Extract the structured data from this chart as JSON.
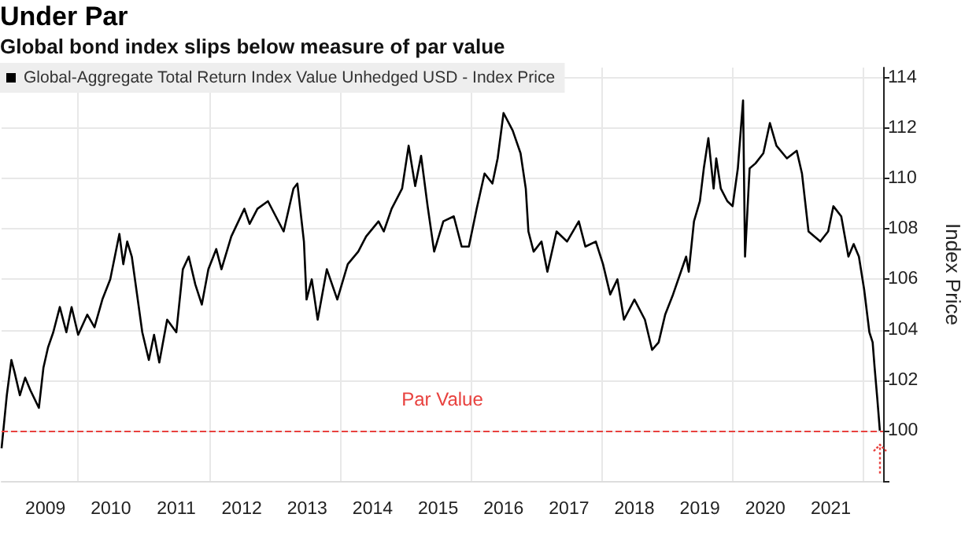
{
  "chart_data": {
    "type": "line",
    "title": "Under Par",
    "subtitle": "Global bond index slips below measure of par value",
    "ylabel": "Index Price",
    "x": [
      2008.83,
      2008.91,
      2008.98,
      2009.03,
      2009.11,
      2009.19,
      2009.27,
      2009.4,
      2009.47,
      2009.54,
      2009.62,
      2009.72,
      2009.82,
      2009.9,
      2010.0,
      2010.14,
      2010.25,
      2010.37,
      2010.49,
      2010.63,
      2010.69,
      2010.75,
      2010.82,
      2010.9,
      2010.98,
      2011.08,
      2011.16,
      2011.24,
      2011.36,
      2011.5,
      2011.6,
      2011.69,
      2011.79,
      2011.89,
      2011.99,
      2012.11,
      2012.19,
      2012.34,
      2012.54,
      2012.62,
      2012.74,
      2012.9,
      2013.02,
      2013.14,
      2013.29,
      2013.35,
      2013.45,
      2013.49,
      2013.57,
      2013.66,
      2013.8,
      2013.96,
      2014.12,
      2014.28,
      2014.4,
      2014.59,
      2014.67,
      2014.79,
      2014.95,
      2015.05,
      2015.15,
      2015.24,
      2015.34,
      2015.44,
      2015.58,
      2015.74,
      2015.86,
      2015.97,
      2016.09,
      2016.21,
      2016.33,
      2016.41,
      2016.5,
      2016.64,
      2016.76,
      2016.84,
      2016.88,
      2016.96,
      2017.08,
      2017.17,
      2017.31,
      2017.47,
      2017.65,
      2017.75,
      2017.91,
      2018.02,
      2018.13,
      2018.24,
      2018.34,
      2018.5,
      2018.66,
      2018.77,
      2018.87,
      2018.97,
      2019.09,
      2019.21,
      2019.29,
      2019.33,
      2019.41,
      2019.5,
      2019.56,
      2019.63,
      2019.71,
      2019.75,
      2019.82,
      2019.92,
      2020.0,
      2020.08,
      2020.16,
      2020.19,
      2020.26,
      2020.35,
      2020.47,
      2020.57,
      2020.67,
      2020.83,
      2020.98,
      2021.06,
      2021.16,
      2021.34,
      2021.46,
      2021.54,
      2021.66,
      2021.77,
      2021.85,
      2021.93,
      2022.01,
      2022.09,
      2022.14,
      2022.17,
      2022.21,
      2022.25
    ],
    "series": [
      {
        "name": "Global-Aggregate Total Return Index Value Unhedged USD - Index Price",
        "color": "#000000",
        "values": [
          99.3,
          101.4,
          102.8,
          102.3,
          101.4,
          102.1,
          101.6,
          100.9,
          102.5,
          103.3,
          103.9,
          104.9,
          103.9,
          104.9,
          103.8,
          104.6,
          104.1,
          105.2,
          106.0,
          107.8,
          106.6,
          107.5,
          106.9,
          105.4,
          103.9,
          102.8,
          103.8,
          102.7,
          104.4,
          103.9,
          106.4,
          106.9,
          105.8,
          105.0,
          106.4,
          107.2,
          106.4,
          107.7,
          108.8,
          108.2,
          108.8,
          109.1,
          108.5,
          107.9,
          109.6,
          109.8,
          107.5,
          105.2,
          106.0,
          104.4,
          106.4,
          105.2,
          106.6,
          107.1,
          107.7,
          108.3,
          107.9,
          108.8,
          109.6,
          111.3,
          109.7,
          110.9,
          108.9,
          107.1,
          108.3,
          108.5,
          107.3,
          107.3,
          108.8,
          110.2,
          109.8,
          110.8,
          112.6,
          111.9,
          111.0,
          109.6,
          107.9,
          107.1,
          107.5,
          106.3,
          107.9,
          107.5,
          108.3,
          107.3,
          107.5,
          106.6,
          105.4,
          106.0,
          104.4,
          105.2,
          104.4,
          103.2,
          103.5,
          104.6,
          105.4,
          106.3,
          106.9,
          106.3,
          108.3,
          109.1,
          110.4,
          111.6,
          109.6,
          110.8,
          109.6,
          109.1,
          108.9,
          110.4,
          113.1,
          106.9,
          110.4,
          110.6,
          111.0,
          112.2,
          111.3,
          110.8,
          111.1,
          110.2,
          107.9,
          107.5,
          107.9,
          108.9,
          108.5,
          106.9,
          107.4,
          106.9,
          105.6,
          103.9,
          103.5,
          102.5,
          101.3,
          100.0
        ]
      }
    ],
    "xlim": [
      2008.83,
      2022.3
    ],
    "xticks": [
      {
        "value": 2009.5,
        "label": "2009"
      },
      {
        "value": 2010,
        "label": null
      },
      {
        "value": 2010.5,
        "label": "2010"
      },
      {
        "value": 2011.5,
        "label": "2011"
      },
      {
        "value": 2012,
        "label": null
      },
      {
        "value": 2012.5,
        "label": "2012"
      },
      {
        "value": 2013.5,
        "label": "2013"
      },
      {
        "value": 2014,
        "label": null
      },
      {
        "value": 2014.5,
        "label": "2014"
      },
      {
        "value": 2015.5,
        "label": "2015"
      },
      {
        "value": 2016,
        "label": null
      },
      {
        "value": 2016.5,
        "label": "2016"
      },
      {
        "value": 2017.5,
        "label": "2017"
      },
      {
        "value": 2018,
        "label": null
      },
      {
        "value": 2018.5,
        "label": "2018"
      },
      {
        "value": 2019.5,
        "label": "2019"
      },
      {
        "value": 2020,
        "label": null
      },
      {
        "value": 2020.5,
        "label": "2020"
      },
      {
        "value": 2021.5,
        "label": "2021"
      },
      {
        "value": 2022,
        "label": null
      }
    ],
    "ylim": [
      98,
      114.4
    ],
    "yticks": [
      {
        "value": 98,
        "label": null
      },
      100,
      102,
      104,
      106,
      108,
      110,
      112,
      114
    ],
    "ref_lines": [
      {
        "axis": "y",
        "value": 100,
        "label": "Par Value",
        "color": "#e8413e",
        "line_style": "dashed"
      }
    ],
    "grid": true,
    "legend": "top left",
    "marker": "none",
    "line_style": "solid"
  }
}
